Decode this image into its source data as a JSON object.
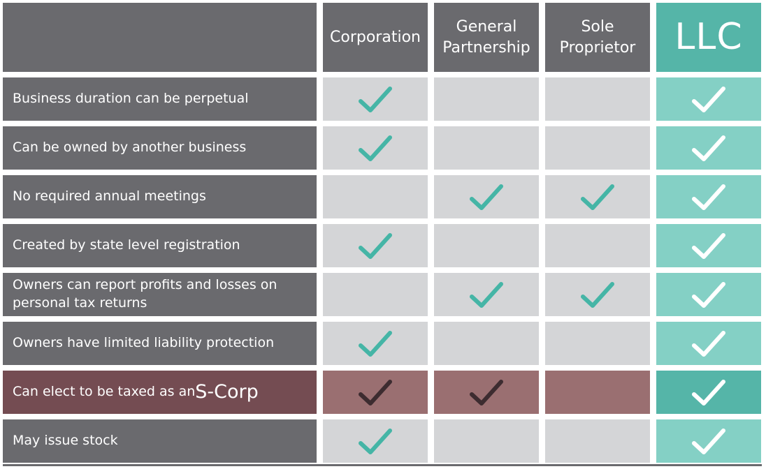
{
  "colors": {
    "row_label_bg": "#6a6a6e",
    "cell_bg": "#d4d5d7",
    "llc_header_bg": "#55b5a8",
    "llc_cell_bg": "#84d0c5",
    "highlight_label_bg": "#744c52",
    "highlight_cell_bg": "#9a6f71",
    "check_teal": "#45b5a6",
    "check_white": "#ffffff",
    "check_dark": "#3d2c30"
  },
  "columns": [
    {
      "key": "corporation",
      "label": "Corporation"
    },
    {
      "key": "general_partnership",
      "label": "General\nPartnership"
    },
    {
      "key": "sole_proprietor",
      "label": "Sole\nProprietor"
    },
    {
      "key": "llc",
      "label": "LLC"
    }
  ],
  "rows": [
    {
      "label": "Business duration can be perpetual",
      "checks": [
        true,
        false,
        false,
        true
      ],
      "highlight": false
    },
    {
      "label": "Can be owned by another business",
      "checks": [
        true,
        false,
        false,
        true
      ],
      "highlight": false
    },
    {
      "label": "No required annual meetings",
      "checks": [
        false,
        true,
        true,
        true
      ],
      "highlight": false
    },
    {
      "label": "Created by state level registration",
      "checks": [
        true,
        false,
        false,
        true
      ],
      "highlight": false
    },
    {
      "label": "Owners can report profits and losses on personal tax returns",
      "checks": [
        false,
        true,
        true,
        true
      ],
      "highlight": false
    },
    {
      "label": "Owners have limited liability protection",
      "checks": [
        true,
        false,
        false,
        true
      ],
      "highlight": false
    },
    {
      "label": "Can elect to be taxed as an ",
      "label_emphasis": "S-Corp",
      "checks": [
        true,
        true,
        false,
        true
      ],
      "highlight": true
    },
    {
      "label": "May issue stock",
      "checks": [
        true,
        false,
        false,
        true
      ],
      "highlight": false
    }
  ]
}
